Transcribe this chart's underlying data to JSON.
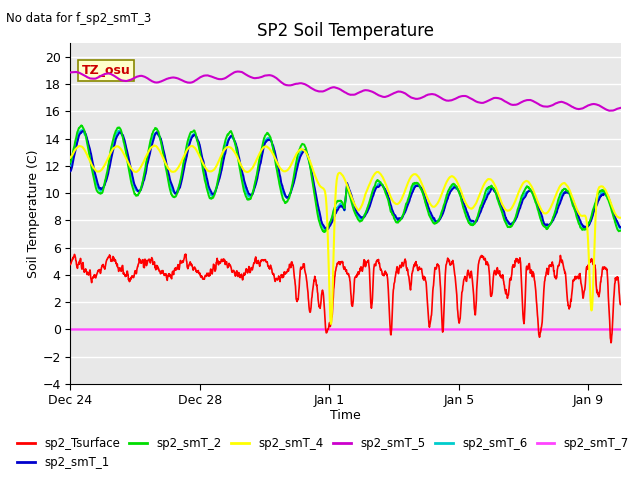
{
  "title": "SP2 Soil Temperature",
  "subtitle": "No data for f_sp2_smT_3",
  "xlabel": "Time",
  "ylabel": "Soil Temperature (C)",
  "ylim": [
    -4,
    21
  ],
  "yticks": [
    -4,
    -2,
    0,
    2,
    4,
    6,
    8,
    10,
    12,
    14,
    16,
    18,
    20
  ],
  "bg_color": "#e8e8e8",
  "fig_color": "#ffffff",
  "tz_label": "TZ_osu",
  "tz_box_color": "#ffffcc",
  "tz_text_color": "#cc0000",
  "series_colors": {
    "sp2_Tsurface": "#ff0000",
    "sp2_smT_1": "#0000cc",
    "sp2_smT_2": "#00dd00",
    "sp2_smT_4": "#ffff00",
    "sp2_smT_5": "#cc00cc",
    "sp2_smT_6": "#00cccc",
    "sp2_smT_7": "#ff44ff"
  },
  "x_tick_positions": [
    0,
    4,
    8,
    12,
    16
  ],
  "x_tick_labels": [
    "Dec 24",
    "Dec 28",
    "Jan 1",
    "Jan 5",
    "Jan 9"
  ]
}
